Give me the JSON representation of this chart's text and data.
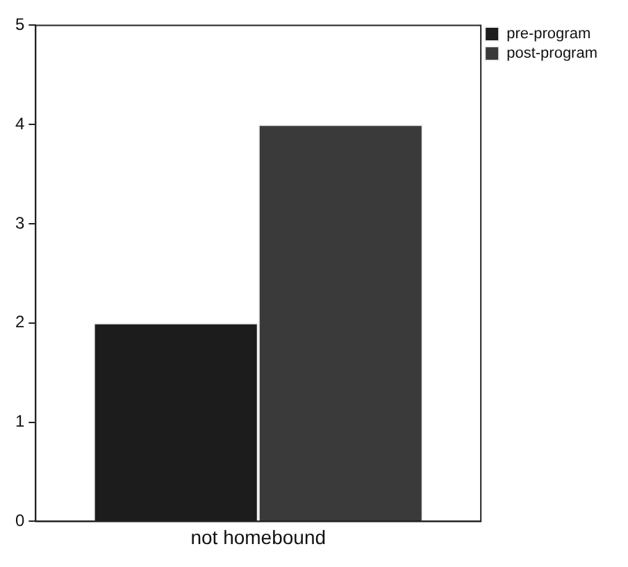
{
  "chart_data": {
    "type": "bar",
    "categories": [
      "not homebound"
    ],
    "series": [
      {
        "name": "pre-program",
        "color": "#1c1c1c",
        "values": [
          2
        ]
      },
      {
        "name": "post-program",
        "color": "#3a3a3a",
        "values": [
          4
        ]
      }
    ],
    "ylim": [
      0,
      5
    ],
    "yticks": [
      0,
      1,
      2,
      3,
      4,
      5
    ],
    "grid": false,
    "legend": "top right"
  }
}
